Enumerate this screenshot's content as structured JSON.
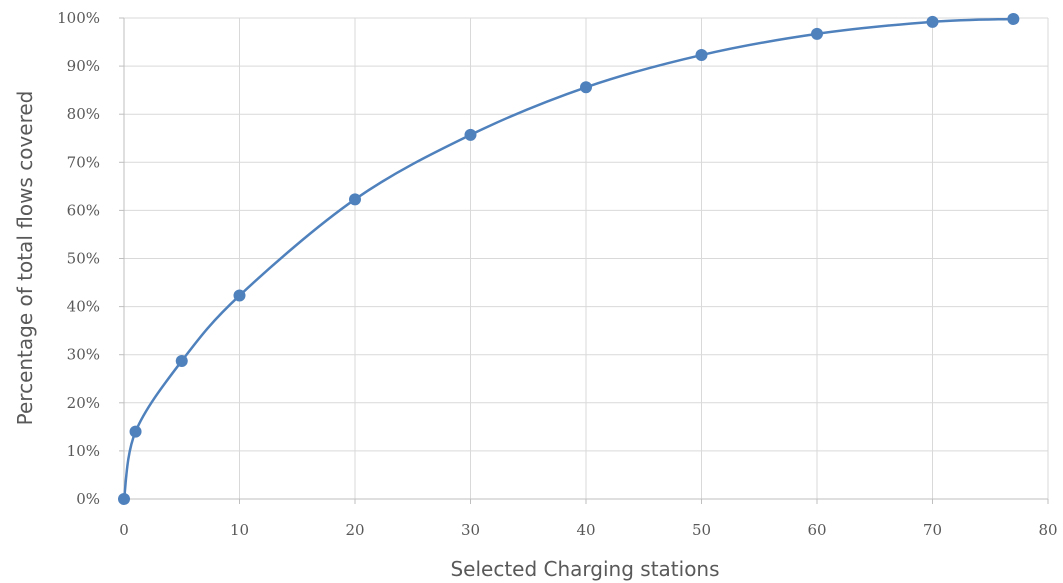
{
  "chart_data": {
    "type": "line",
    "title": "",
    "xlabel": "Selected Charging stations",
    "ylabel": "Percentage of total flows covered",
    "xlim": [
      0,
      80
    ],
    "ylim": [
      0,
      100
    ],
    "x_ticks": [
      0,
      10,
      20,
      30,
      40,
      50,
      60,
      70,
      80
    ],
    "y_ticks": [
      0,
      10,
      20,
      30,
      40,
      50,
      60,
      70,
      80,
      90,
      100
    ],
    "y_tick_format": "percent",
    "grid": true,
    "legend": "none",
    "smooth": true,
    "series": [
      {
        "color": "#4f81bd",
        "points": [
          {
            "x": 0,
            "y": 0
          },
          {
            "x": 1,
            "y": 14
          },
          {
            "x": 5,
            "y": 28.7
          },
          {
            "x": 10,
            "y": 42.3
          },
          {
            "x": 20,
            "y": 62.3
          },
          {
            "x": 30,
            "y": 75.7
          },
          {
            "x": 40,
            "y": 85.6
          },
          {
            "x": 50,
            "y": 92.3
          },
          {
            "x": 60,
            "y": 96.7
          },
          {
            "x": 70,
            "y": 99.2
          },
          {
            "x": 77,
            "y": 99.8
          }
        ]
      }
    ]
  }
}
